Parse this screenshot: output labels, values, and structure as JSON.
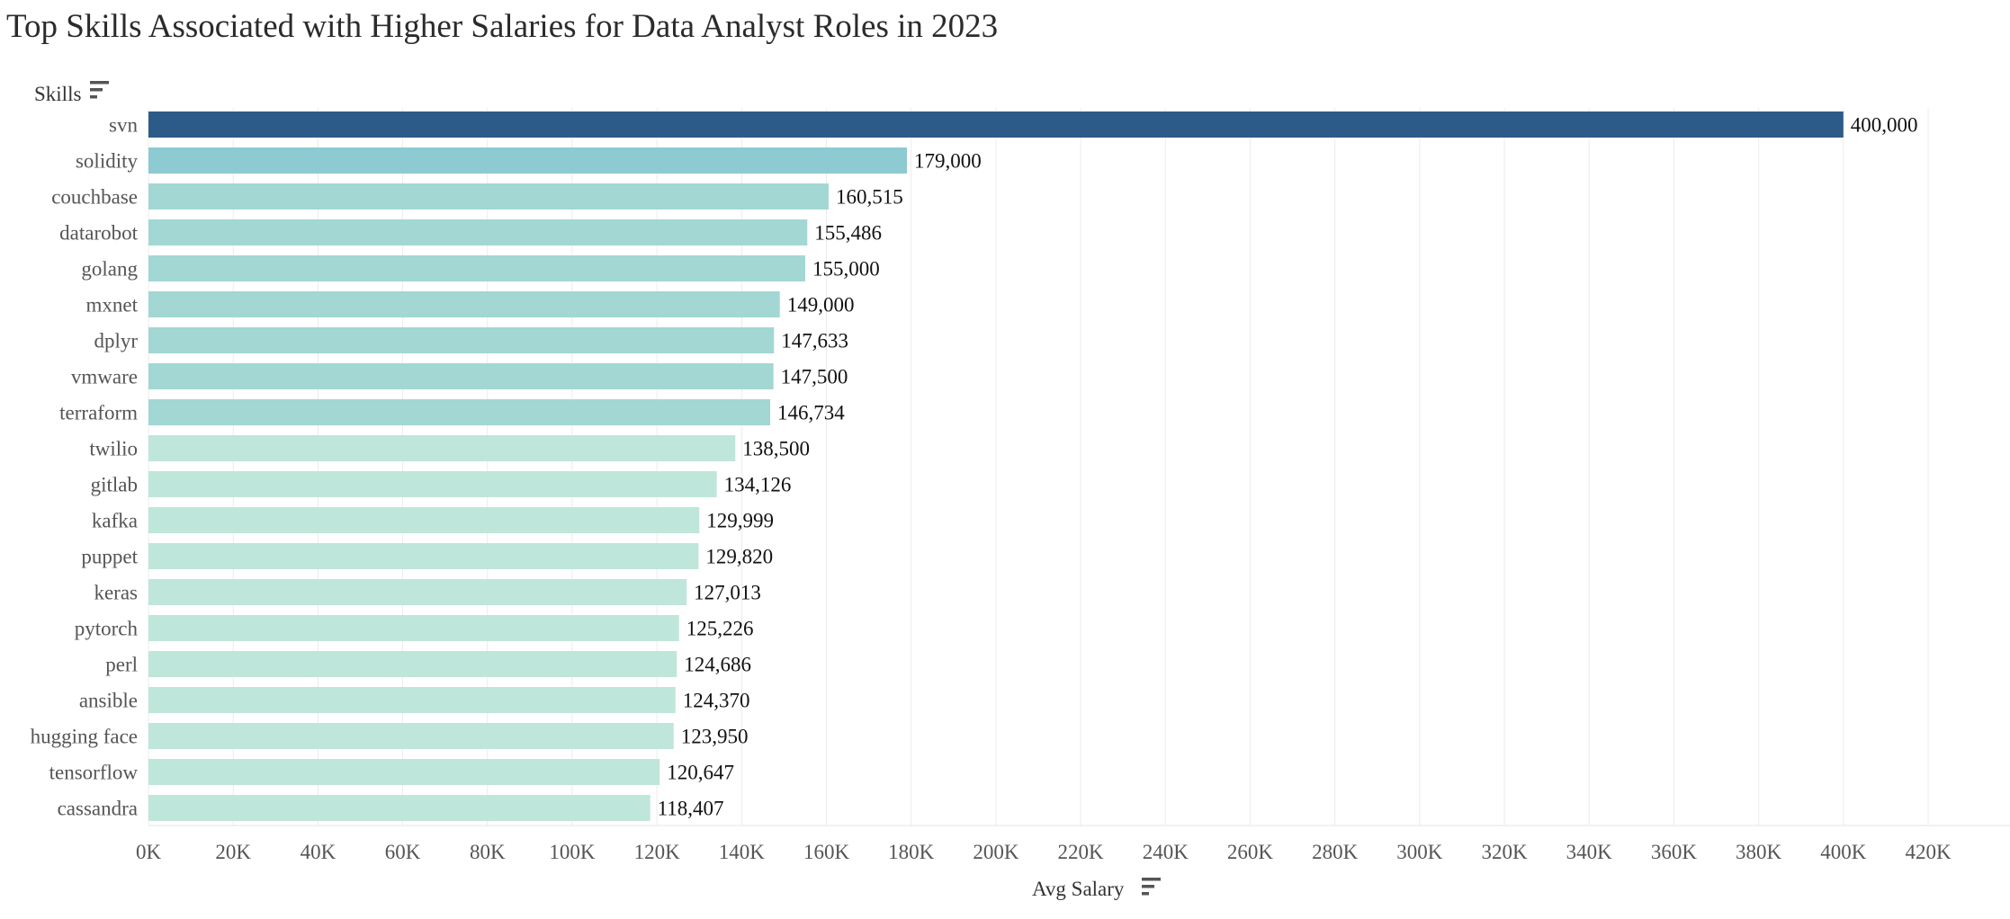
{
  "chart_data": {
    "type": "bar",
    "orientation": "horizontal",
    "title": "Top Skills Associated with Higher Salaries for Data Analyst Roles in 2023",
    "ylabel": "Skills",
    "xlabel": "Avg Salary",
    "xlim": [
      0,
      420000
    ],
    "x_ticks": [
      "0K",
      "20K",
      "40K",
      "60K",
      "80K",
      "100K",
      "120K",
      "140K",
      "160K",
      "180K",
      "200K",
      "220K",
      "240K",
      "260K",
      "280K",
      "300K",
      "320K",
      "340K",
      "360K",
      "380K",
      "400K",
      "420K"
    ],
    "grid": true,
    "categories": [
      "svn",
      "solidity",
      "couchbase",
      "datarobot",
      "golang",
      "mxnet",
      "dplyr",
      "vmware",
      "terraform",
      "twilio",
      "gitlab",
      "kafka",
      "puppet",
      "keras",
      "pytorch",
      "perl",
      "ansible",
      "hugging face",
      "tensorflow",
      "cassandra"
    ],
    "values": [
      400000,
      179000,
      160515,
      155486,
      155000,
      149000,
      147633,
      147500,
      146734,
      138500,
      134126,
      129999,
      129820,
      127013,
      125226,
      124686,
      124370,
      123950,
      120647,
      118407
    ],
    "value_labels": [
      "400,000",
      "179,000",
      "160,515",
      "155,486",
      "155,000",
      "149,000",
      "147,633",
      "147,500",
      "146,734",
      "138,500",
      "134,126",
      "129,999",
      "129,820",
      "127,013",
      "125,226",
      "124,686",
      "124,370",
      "123,950",
      "120,647",
      "118,407"
    ],
    "color_scale": [
      "#bfe6da",
      "#a2d7d4",
      "#8dcad1",
      "#2c5b88"
    ]
  },
  "icons": {
    "sort": "sort-descending-icon"
  }
}
